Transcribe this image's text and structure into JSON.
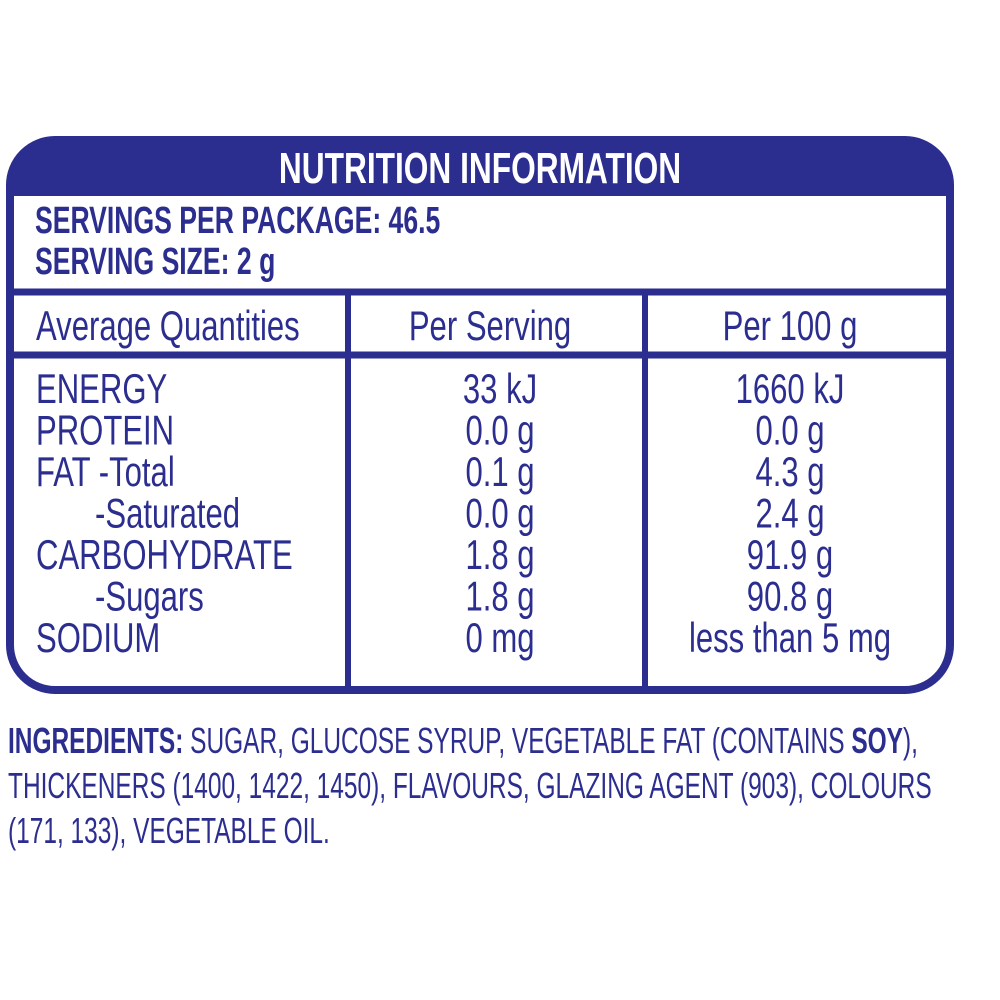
{
  "header": {
    "title": "NUTRITION INFORMATION",
    "servings_per_package": "SERVINGS PER PACKAGE: 46.5",
    "serving_size": "SERVING SIZE: 2 g"
  },
  "table": {
    "columns": [
      "Average Quantities",
      "Per Serving",
      "Per 100 g"
    ],
    "rows": [
      [
        "ENERGY",
        "33 kJ",
        "1660 kJ"
      ],
      [
        "PROTEIN",
        "0.0 g",
        "0.0 g"
      ],
      [
        "FAT -Total",
        "0.1 g",
        "4.3 g"
      ],
      [
        "-Saturated",
        "0.0 g",
        "2.4 g"
      ],
      [
        "CARBOHYDRATE",
        "1.8 g",
        "91.9 g"
      ],
      [
        "-Sugars",
        "1.8 g",
        "90.8 g"
      ],
      [
        "SODIUM",
        "0 mg",
        "less than 5 mg"
      ]
    ]
  },
  "ingredients": {
    "label": "INGREDIENTS:",
    "line1_before": "SUGAR, GLUCOSE SYRUP, VEGETABLE FAT (CONTAINS",
    "allergen": "SOY",
    "line1_after": "),",
    "line2": "THICKENERS (1400, 1422, 1450), FLAVOURS, GLAZING AGENT (903), COLOURS",
    "line3": "(171, 133), VEGETABLE OIL."
  }
}
